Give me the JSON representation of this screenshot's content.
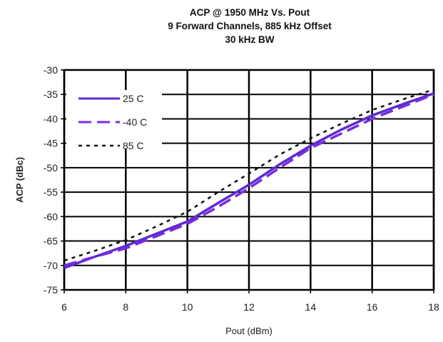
{
  "chart_data": {
    "type": "line",
    "title_lines": [
      "ACP @ 1950 MHz Vs. Pout",
      "9 Forward Channels, 885 kHz Offset",
      "30 kHz BW"
    ],
    "xlabel": "Pout (dBm)",
    "ylabel": "ACP (dBc)",
    "xlim": [
      6,
      18
    ],
    "ylim": [
      -75,
      -30
    ],
    "xticks": [
      6,
      8,
      10,
      12,
      14,
      16,
      18
    ],
    "yticks": [
      -30,
      -35,
      -40,
      -45,
      -50,
      -55,
      -60,
      -65,
      -70,
      -75
    ],
    "grid": true,
    "legend_position": "top-left",
    "series": [
      {
        "name": "25 C",
        "color": "#5b2bd1",
        "dash": "solid",
        "x": [
          6,
          7,
          8,
          9,
          10,
          11,
          12,
          13,
          14,
          15,
          16,
          17,
          18
        ],
        "y": [
          -70.5,
          -68.2,
          -66,
          -63.5,
          -61,
          -57.2,
          -53.5,
          -49.3,
          -45.5,
          -42.2,
          -39.3,
          -37,
          -34.8
        ]
      },
      {
        "name": "-40 C",
        "color": "#7b2be0",
        "dash": "long",
        "x": [
          6,
          7,
          8,
          9,
          10,
          11,
          12,
          13,
          14,
          15,
          16,
          17,
          18
        ],
        "y": [
          -70,
          -68.2,
          -66.5,
          -64,
          -61.5,
          -58,
          -54.2,
          -50,
          -46,
          -43,
          -40,
          -37.5,
          -35
        ]
      },
      {
        "name": "85 C",
        "color": "#111111",
        "dash": "short",
        "x": [
          6,
          7,
          8,
          9,
          10,
          11,
          12,
          13,
          14,
          15,
          16,
          17,
          18
        ],
        "y": [
          -69,
          -67,
          -64.8,
          -62,
          -59,
          -55,
          -51.2,
          -47.3,
          -44,
          -41,
          -38.2,
          -36,
          -34
        ]
      }
    ]
  }
}
